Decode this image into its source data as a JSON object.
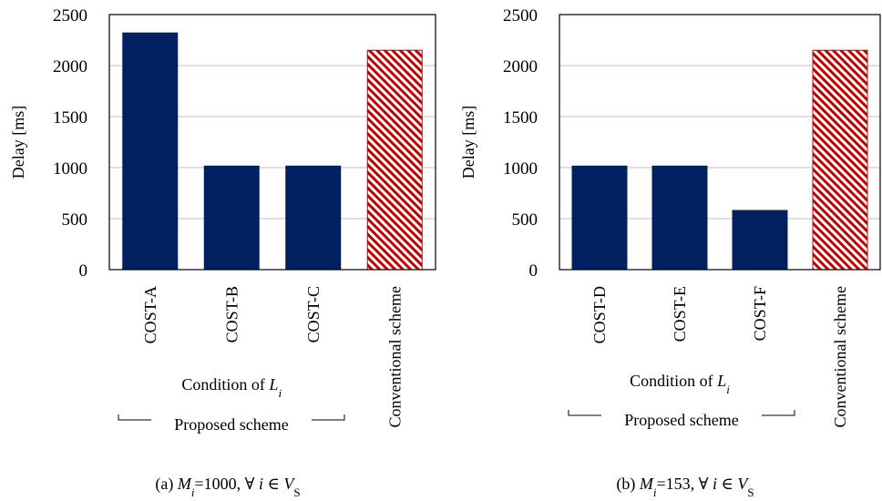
{
  "charts": [
    {
      "id": "a",
      "ylabel": "Delay [ms]",
      "yticks": [
        "0",
        "500",
        "1000",
        "1500",
        "2000",
        "2500"
      ],
      "condition_text": "Condition of ",
      "condition_var": "L",
      "condition_sub": "i",
      "proposed_label": "Proposed scheme",
      "caption_prefix": "(a) ",
      "caption_var": "M",
      "caption_sub": "i",
      "caption_rest": "=1000, ∀ ",
      "caption_i": "i",
      "caption_in": " ∈ ",
      "caption_set": "V",
      "caption_set_sub": "S"
    },
    {
      "id": "b",
      "ylabel": "Delay [ms]",
      "yticks": [
        "0",
        "500",
        "1000",
        "1500",
        "2000",
        "2500"
      ],
      "condition_text": "Condition of ",
      "condition_var": "L",
      "condition_sub": "i",
      "proposed_label": "Proposed scheme",
      "caption_prefix": "(b) ",
      "caption_var": "M",
      "caption_sub": "i",
      "caption_rest": "=153, ∀ ",
      "caption_i": "i",
      "caption_in": " ∈ ",
      "caption_set": "V",
      "caption_set_sub": "S"
    }
  ],
  "colors": {
    "proposed": "#002060",
    "conventional": "#c00000",
    "grid": "#bfbfbf",
    "axis": "#000000"
  },
  "chart_data": [
    {
      "type": "bar",
      "categories": [
        "COST-A",
        "COST-B",
        "COST-C",
        "Conventional scheme"
      ],
      "values": [
        2320,
        1015,
        1015,
        2150
      ],
      "bar_styles": [
        "solid",
        "solid",
        "solid",
        "hatched"
      ],
      "title": "",
      "xlabel": "Condition of Li",
      "ylabel": "Delay [ms]",
      "ylim": [
        0,
        2500
      ],
      "grid": true
    },
    {
      "type": "bar",
      "categories": [
        "COST-D",
        "COST-E",
        "COST-F",
        "Conventional scheme"
      ],
      "values": [
        1015,
        1015,
        580,
        2150
      ],
      "bar_styles": [
        "solid",
        "solid",
        "solid",
        "hatched"
      ],
      "title": "",
      "xlabel": "Condition of Li",
      "ylabel": "Delay [ms]",
      "ylim": [
        0,
        2500
      ],
      "grid": true
    }
  ]
}
